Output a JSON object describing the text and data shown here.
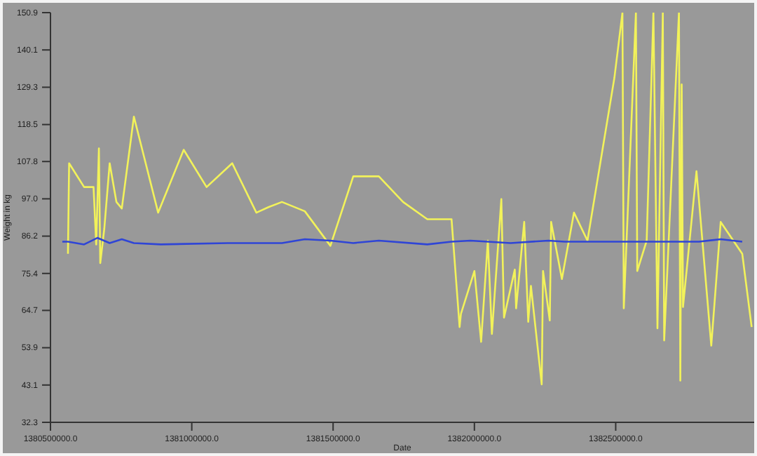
{
  "chart_data": {
    "type": "line",
    "xlabel": "Date",
    "ylabel": "Weight in kg",
    "xlim": [
      1380500000,
      1382990000
    ],
    "xticks": [
      {
        "value": 1380500000,
        "label": "1380500000.0"
      },
      {
        "value": 1381000000,
        "label": "1381000000.0"
      },
      {
        "value": 1381500000,
        "label": "1381500000.0"
      },
      {
        "value": 1382000000,
        "label": "1382000000.0"
      },
      {
        "value": 1382500000,
        "label": "1382500000.0"
      }
    ],
    "ylim": [
      32.3,
      150.9
    ],
    "yticks": [
      32.3,
      43.1,
      53.9,
      64.7,
      75.4,
      86.2,
      {
        "value": 97,
        "label": "97.0"
      },
      107.8,
      118.5,
      129.3,
      140.1,
      150.9
    ],
    "grid": false,
    "marker": "none",
    "line_style": "solid",
    "series": [
      {
        "color": "#f2f25a",
        "x": [
          1380561900,
          1380566000,
          1380619000,
          1380652400,
          1380661900,
          1380671400,
          1380676200,
          1380690500,
          1380709500,
          1380733300,
          1380752400,
          1380795200,
          1380881000,
          1380971400,
          1381052400,
          1381142900,
          1381228600,
          1381271400,
          1381319100,
          1381400000,
          1381490500,
          1381571400,
          1381661900,
          1381747600,
          1381833400,
          1381919100,
          1381947600,
          1381952400,
          1382000000,
          1382023800,
          1382047600,
          1382061900,
          1382095300,
          1382104800,
          1382142900,
          1382147600,
          1382176200,
          1382190500,
          1382200000,
          1382238100,
          1382242900,
          1382266700,
          1382271500,
          1382309600,
          1382352400,
          1382400000,
          1382495300,
          1382523800,
          1382528600,
          1382571500,
          1382576200,
          1382609600,
          1382633400,
          1382647700,
          1382666700,
          1382671500,
          1382723800,
          1382728600,
          1382733400,
          1382738100,
          1382785800,
          1382838100,
          1382871500,
          1382947700,
          1382981000
        ],
        "values": [
          81.1,
          107.3,
          100.4,
          100.4,
          83.8,
          111.6,
          78.4,
          88.4,
          107.3,
          96.1,
          94.2,
          120.8,
          93.0,
          111.2,
          100.4,
          107.3,
          93.0,
          94.6,
          96.1,
          93.4,
          83.4,
          103.5,
          103.5,
          96.1,
          91.1,
          91.1,
          59.9,
          63.7,
          76.1,
          55.6,
          84.9,
          57.9,
          96.9,
          62.6,
          76.5,
          65.3,
          90.3,
          61.4,
          71.8,
          43.3,
          76.1,
          61.8,
          90.3,
          73.8,
          93.0,
          84.9,
          132.0,
          150.9,
          65.3,
          150.9,
          76.1,
          84.9,
          150.9,
          59.5,
          150.9,
          56.0,
          150.9,
          44.4,
          130.1,
          65.7,
          105.0,
          54.5,
          90.3,
          81.1,
          59.9
        ]
      },
      {
        "color": "#2f45d6",
        "x": [
          1380542000,
          1380561900,
          1380619000,
          1380666000,
          1380709500,
          1380752400,
          1380795200,
          1380890000,
          1381129000,
          1381319100,
          1381400000,
          1381490500,
          1381571400,
          1381661900,
          1381833400,
          1381919100,
          1381986000,
          1382128000,
          1382262000,
          1382319000,
          1382509000,
          1382795000,
          1382871500,
          1382947700
        ],
        "values": [
          84.6,
          84.6,
          83.8,
          85.7,
          84.2,
          85.3,
          84.2,
          83.8,
          84.2,
          84.2,
          85.3,
          84.9,
          84.2,
          84.9,
          83.8,
          84.6,
          84.9,
          84.2,
          84.9,
          84.6,
          84.6,
          84.6,
          85.3,
          84.6
        ]
      }
    ]
  }
}
